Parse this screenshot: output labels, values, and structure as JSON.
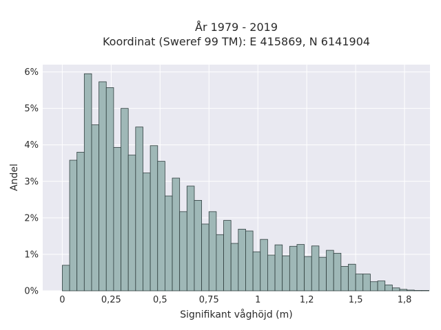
{
  "chart_data": {
    "type": "bar",
    "title_lines": [
      "År 1979 - 2019",
      "Koordinat (Sweref 99 TM): E 415869, N 6141904"
    ],
    "xlabel": "Signifikant våghöjd (m)",
    "ylabel": "Andel",
    "xlim": [
      -0.1,
      1.88
    ],
    "ylim": [
      0,
      6.2
    ],
    "x_ticks": [
      0,
      0.25,
      0.5,
      0.75,
      1,
      1.25,
      1.5,
      1.75
    ],
    "x_tick_labels": [
      "0",
      "0,25",
      "0,5",
      "0,75",
      "1",
      "1,2",
      "1,5",
      "1,8"
    ],
    "y_ticks": [
      0,
      1,
      2,
      3,
      4,
      5,
      6
    ],
    "y_tick_labels": [
      "0%",
      "1%",
      "2%",
      "3%",
      "4%",
      "5%",
      "6%"
    ],
    "bin_width": 0.0375,
    "bin_start": 0,
    "values": [
      0.7,
      3.58,
      3.8,
      5.95,
      4.55,
      5.73,
      5.57,
      3.93,
      5.0,
      3.72,
      4.49,
      3.23,
      3.98,
      3.55,
      2.6,
      3.09,
      2.17,
      2.87,
      2.48,
      1.83,
      2.17,
      1.54,
      1.93,
      1.3,
      1.69,
      1.64,
      1.07,
      1.41,
      0.98,
      1.26,
      0.96,
      1.22,
      1.27,
      0.94,
      1.23,
      0.92,
      1.11,
      1.03,
      0.67,
      0.73,
      0.46,
      0.46,
      0.25,
      0.27,
      0.16,
      0.08,
      0.04,
      0.02,
      0.01,
      0.01
    ],
    "grid": true,
    "colors": {
      "bar_fill": "#9fb8b7",
      "bar_edge": "#2f3e3e",
      "plot_bg": "#e9e9f1",
      "grid": "#ffffff"
    }
  }
}
